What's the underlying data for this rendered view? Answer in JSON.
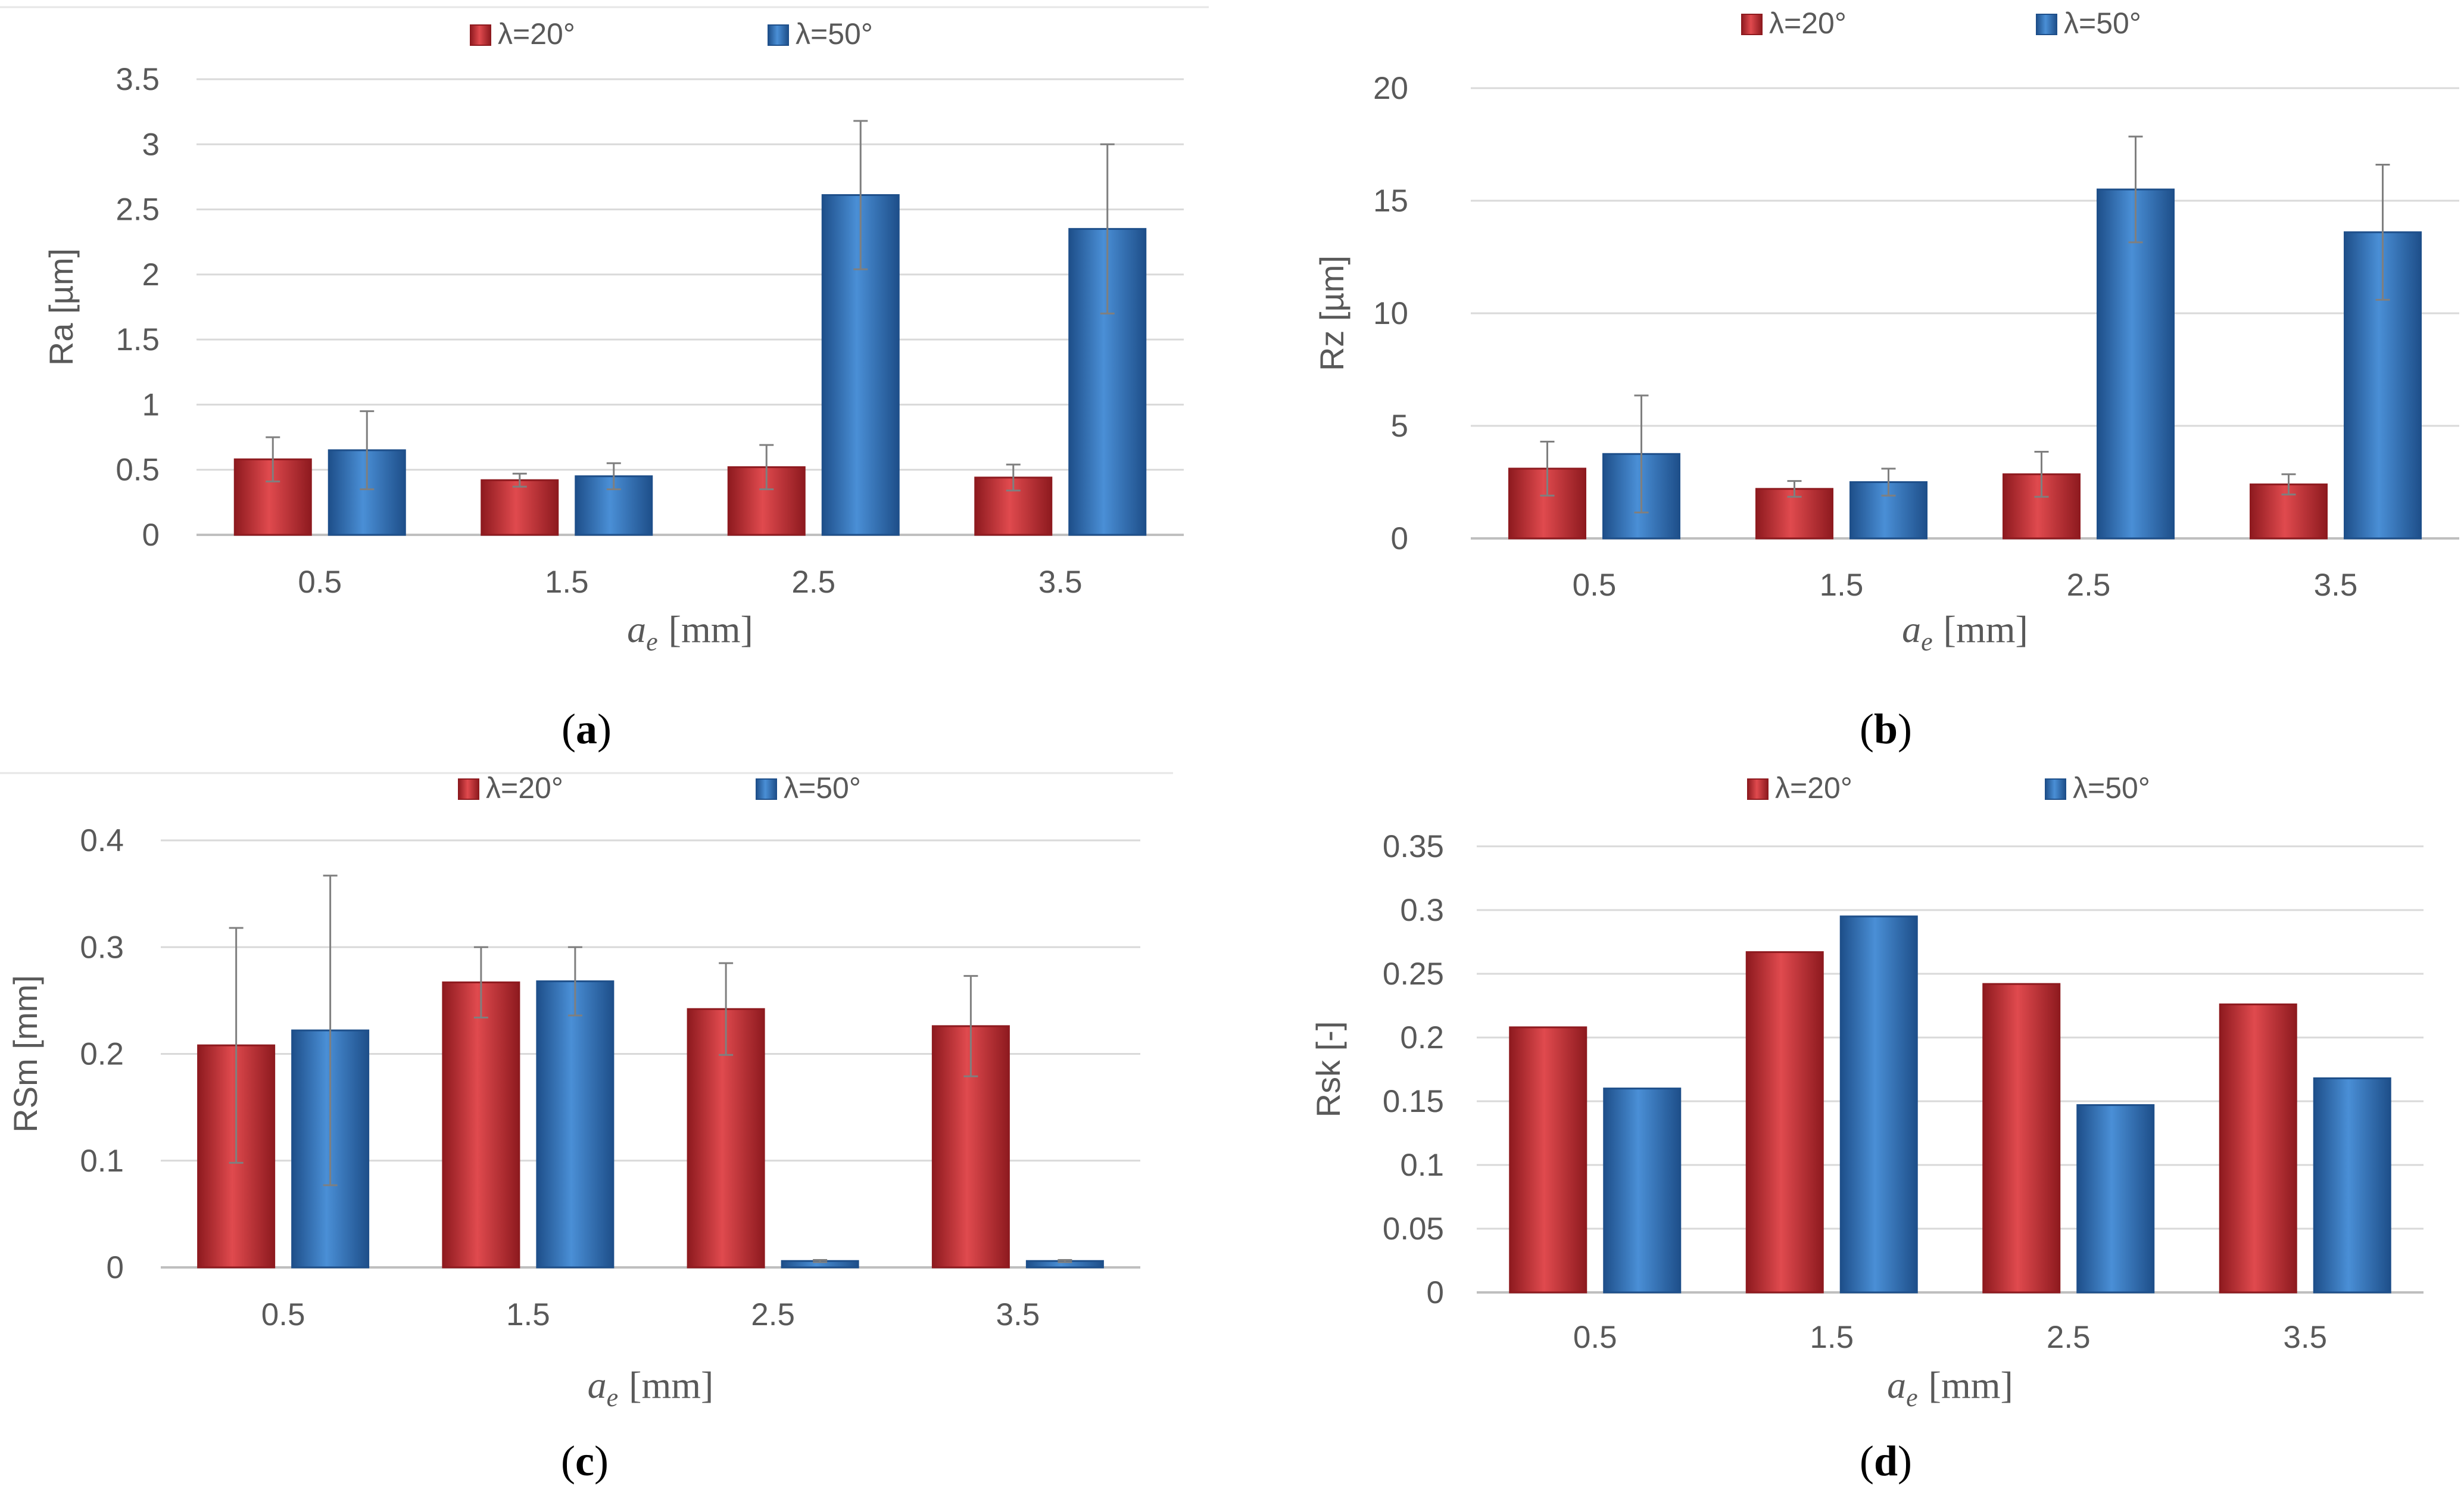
{
  "chart_data": [
    {
      "type": "bar",
      "caption": "a",
      "categories": [
        "0.5",
        "1.5",
        "2.5",
        "3.5"
      ],
      "series": [
        {
          "name": "λ=20°",
          "values": [
            0.58,
            0.42,
            0.52,
            0.44
          ],
          "errors": [
            0.17,
            0.05,
            0.17,
            0.1
          ]
        },
        {
          "name": "λ=50°",
          "values": [
            0.65,
            0.45,
            2.61,
            2.35
          ],
          "errors": [
            0.3,
            0.1,
            0.57,
            0.65
          ]
        }
      ],
      "ylabel": "Ra [µm]",
      "xlabel_var": "a",
      "xlabel_sub": "e",
      "xlabel_unit": "[mm]",
      "yticks": [
        "0",
        "0.5",
        "1",
        "1.5",
        "2",
        "2.5",
        "3",
        "3.5"
      ],
      "ylim": [
        0,
        3.5
      ],
      "grid": true,
      "legend": "top-center"
    },
    {
      "type": "bar",
      "caption": "b",
      "categories": [
        "0.5",
        "1.5",
        "2.5",
        "3.5"
      ],
      "series": [
        {
          "name": "λ=20°",
          "values": [
            3.1,
            2.2,
            2.85,
            2.4
          ],
          "errors": [
            1.2,
            0.35,
            1.0,
            0.45
          ]
        },
        {
          "name": "λ=50°",
          "values": [
            3.75,
            2.5,
            15.5,
            13.6
          ],
          "errors": [
            2.6,
            0.6,
            2.35,
            3.0
          ]
        }
      ],
      "ylabel": "Rz [µm]",
      "xlabel_var": "a",
      "xlabel_sub": "e",
      "xlabel_unit": "[mm]",
      "yticks": [
        "0",
        "5",
        "10",
        "15",
        "20"
      ],
      "ylim": [
        0,
        20
      ],
      "grid": true,
      "legend": "top-center"
    },
    {
      "type": "bar",
      "caption": "c",
      "categories": [
        "0.5",
        "1.5",
        "2.5",
        "3.5"
      ],
      "series": [
        {
          "name": "λ=20°",
          "values": [
            0.208,
            0.267,
            0.242,
            0.226
          ],
          "errors": [
            0.11,
            0.033,
            0.043,
            0.047
          ]
        },
        {
          "name": "λ=50°",
          "values": [
            0.222,
            0.268,
            0.006,
            0.006
          ],
          "errors": [
            0.145,
            0.032,
            0.001,
            0.001
          ]
        }
      ],
      "ylabel": "RSm [mm]",
      "xlabel_var": "a",
      "xlabel_sub": "e",
      "xlabel_unit": "[mm]",
      "yticks": [
        "0",
        "0.1",
        "0.2",
        "0.3",
        "0.4"
      ],
      "ylim": [
        0,
        0.4
      ],
      "grid": true,
      "legend": "top-center"
    },
    {
      "type": "bar",
      "caption": "d",
      "categories": [
        "0.5",
        "1.5",
        "2.5",
        "3.5"
      ],
      "series": [
        {
          "name": "λ=20°",
          "values": [
            0.208,
            0.267,
            0.242,
            0.226
          ],
          "errors": null
        },
        {
          "name": "λ=50°",
          "values": [
            0.16,
            0.295,
            0.147,
            0.168
          ],
          "errors": null
        }
      ],
      "ylabel": "Rsk [-]",
      "xlabel_var": "a",
      "xlabel_sub": "e",
      "xlabel_unit": "[mm]",
      "yticks": [
        "0",
        "0.05",
        "0.1",
        "0.15",
        "0.2",
        "0.25",
        "0.3",
        "0.35"
      ],
      "ylim": [
        0,
        0.35
      ],
      "grid": true,
      "legend": "top-center"
    }
  ],
  "colors": {
    "series1": "#c0272d",
    "series1_dark": "#8e1a1f",
    "series1_light": "#e04a4e",
    "series2": "#2f6fb6",
    "series2_dark": "#1e4f8a",
    "series2_light": "#4a8fd6",
    "grid": "#d9d9d9",
    "axis": "#bfbfbf",
    "text": "#595959",
    "errorbar": "#7f7f7f"
  }
}
